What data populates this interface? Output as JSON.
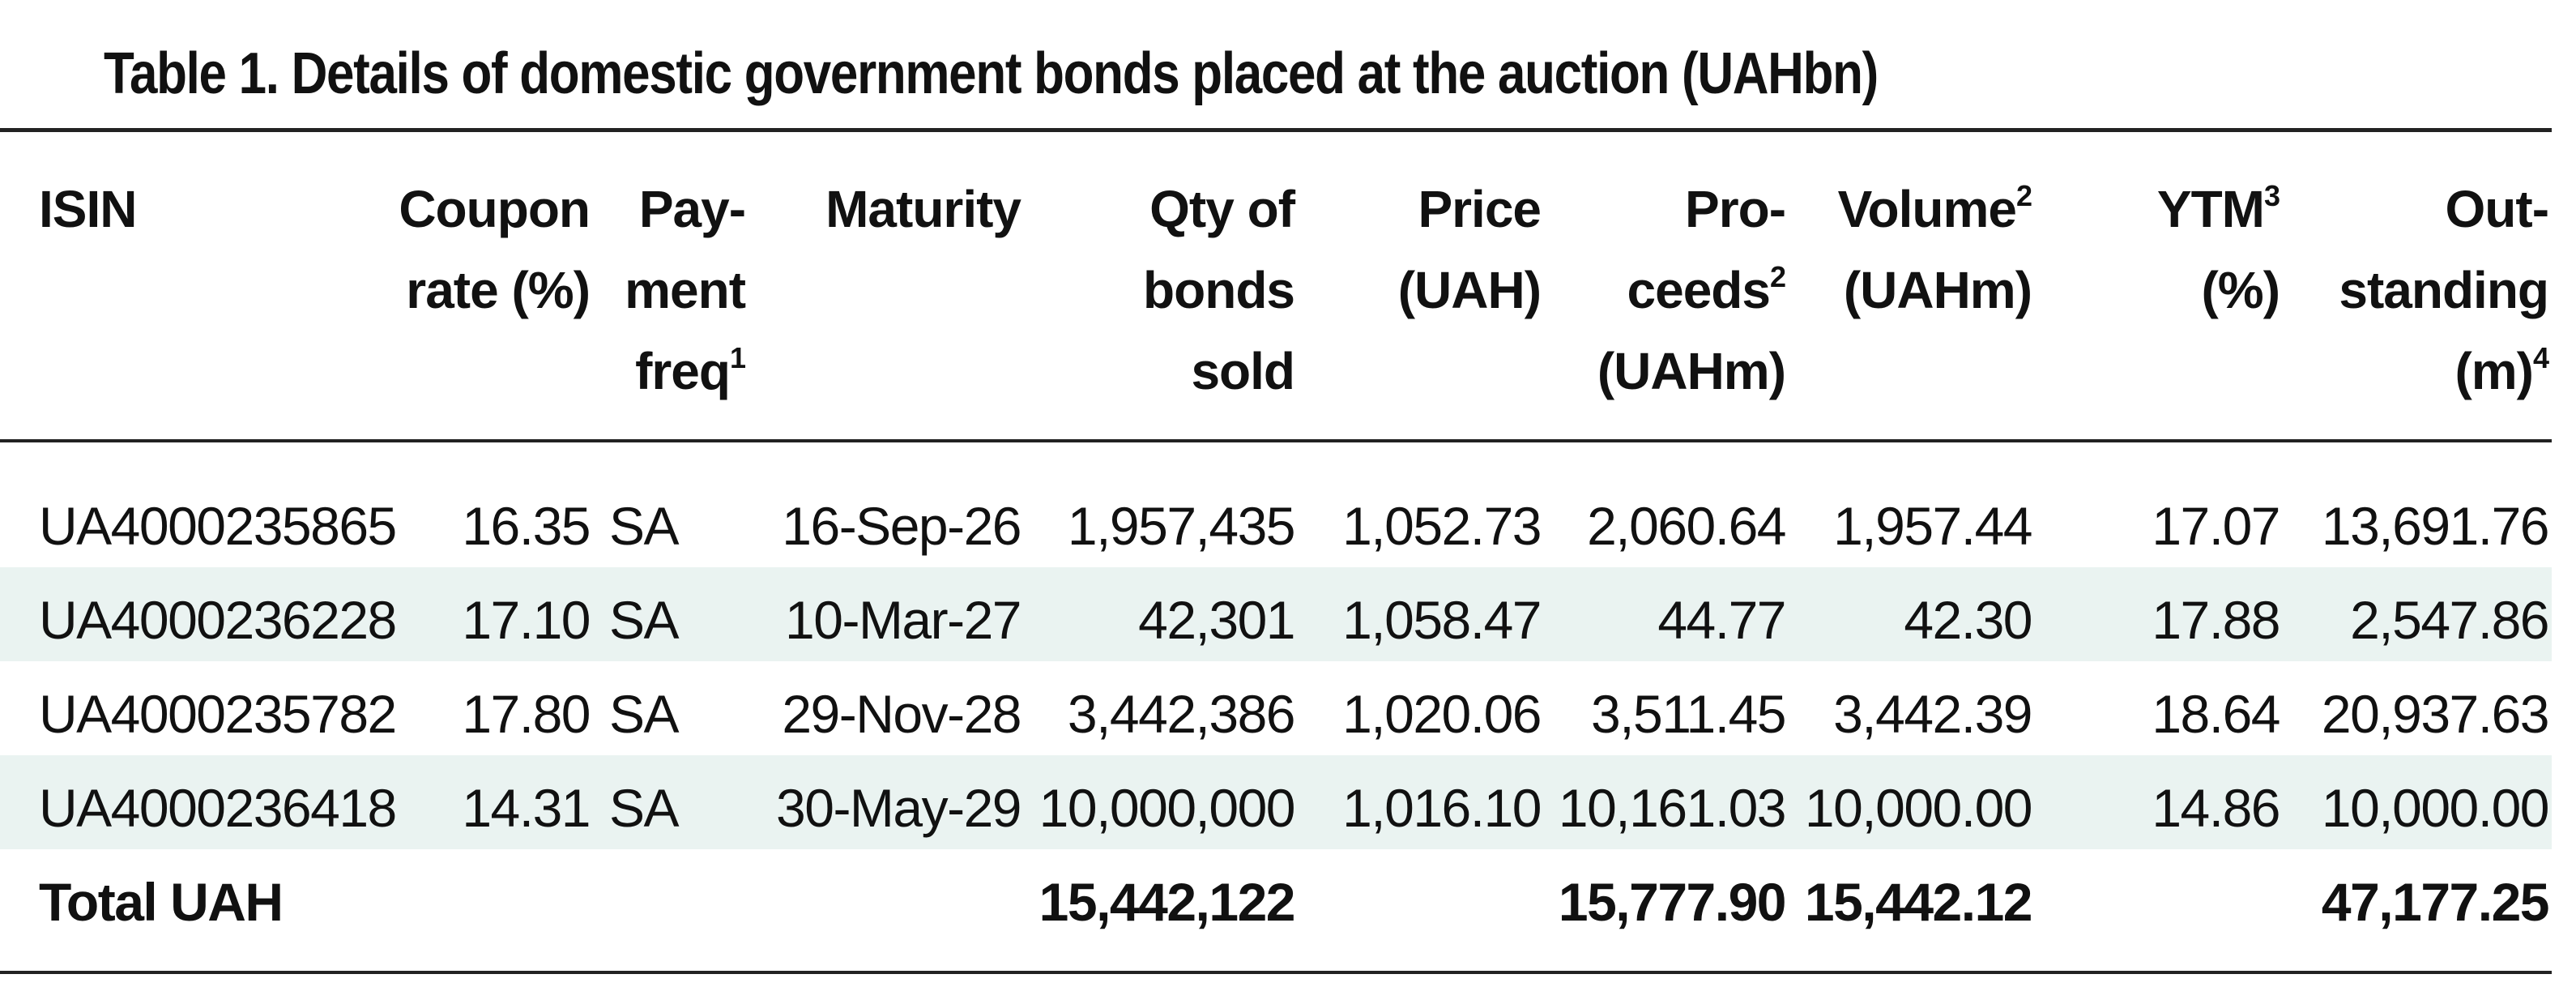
{
  "title": "Table 1. Details of domestic government bonds placed at the auction (UAHbn)",
  "headers": {
    "isin": [
      "ISIN"
    ],
    "coupon": [
      "Coupon",
      "rate (%)"
    ],
    "payment": [
      "Pay-",
      "ment",
      "freq"
    ],
    "payment_sup": "1",
    "maturity": [
      "Maturity"
    ],
    "qty": [
      "Qty of",
      "bonds",
      "sold"
    ],
    "price": [
      "Price",
      "(UAH)"
    ],
    "proceeds": [
      "Pro-",
      "ceeds",
      "(UAHm)"
    ],
    "proceeds_sup": "2",
    "volume": [
      "Volume",
      "(UAHm)"
    ],
    "volume_sup": "2",
    "ytm": [
      "YTM",
      "(%)"
    ],
    "ytm_sup": "3",
    "outstanding": [
      "Out-",
      "standing",
      "(m)"
    ],
    "outstanding_sup": "4"
  },
  "rows": [
    {
      "isin": "UA4000235865",
      "coupon": "16.35",
      "payment": "SA",
      "maturity": "16-Sep-26",
      "qty": "1,957,435",
      "price": "1,052.73",
      "proceeds": "2,060.64",
      "volume": "1,957.44",
      "ytm": "17.07",
      "outstanding": "13,691.76"
    },
    {
      "isin": "UA4000236228",
      "coupon": "17.10",
      "payment": "SA",
      "maturity": "10-Mar-27",
      "qty": "42,301",
      "price": "1,058.47",
      "proceeds": "44.77",
      "volume": "42.30",
      "ytm": "17.88",
      "outstanding": "2,547.86"
    },
    {
      "isin": "UA4000235782",
      "coupon": "17.80",
      "payment": "SA",
      "maturity": "29-Nov-28",
      "qty": "3,442,386",
      "price": "1,020.06",
      "proceeds": "3,511.45",
      "volume": "3,442.39",
      "ytm": "18.64",
      "outstanding": "20,937.63"
    },
    {
      "isin": "UA4000236418",
      "coupon": "14.31",
      "payment": "SA",
      "maturity": "30-May-29",
      "qty": "10,000,000",
      "price": "1,016.10",
      "proceeds": "10,161.03",
      "volume": "10,000.00",
      "ytm": "14.86",
      "outstanding": "10,000.00"
    }
  ],
  "total": {
    "label": "Total UAH",
    "qty": "15,442,122",
    "proceeds": "15,777.90",
    "volume": "15,442.12",
    "outstanding": "47,177.25"
  },
  "colors": {
    "band": "#eaf3f1",
    "rule": "#222222",
    "text": "#111111"
  }
}
